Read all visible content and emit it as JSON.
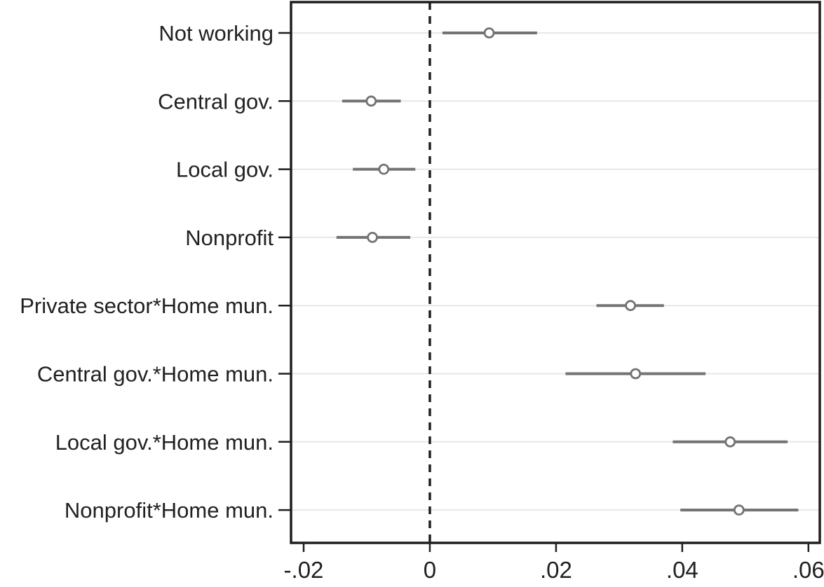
{
  "figure": {
    "background": "#ffffff"
  },
  "chart_data": {
    "type": "scatter",
    "subtype": "coefficient-plot",
    "title": "",
    "xlabel": "",
    "ylabel": "",
    "grid": "horizontal-rows",
    "legend": "none",
    "xlim": [
      -0.022,
      0.0618
    ],
    "zero_line": 0,
    "x_ticks": {
      "values": [
        -0.02,
        0,
        0.02,
        0.04,
        0.06
      ],
      "labels": [
        "-.02",
        "0",
        ".02",
        ".04",
        ".06"
      ]
    },
    "rows": [
      {
        "label": "Not working",
        "estimate": 0.0094,
        "ci_low": 0.002,
        "ci_high": 0.017
      },
      {
        "label": "Central gov.",
        "estimate": -0.0093,
        "ci_low": -0.0139,
        "ci_high": -0.0046
      },
      {
        "label": "Local gov.",
        "estimate": -0.0073,
        "ci_low": -0.0122,
        "ci_high": -0.0023
      },
      {
        "label": "Nonprofit",
        "estimate": -0.0091,
        "ci_low": -0.0148,
        "ci_high": -0.0031
      },
      {
        "label": "Private sector*Home mun.",
        "estimate": 0.0318,
        "ci_low": 0.0264,
        "ci_high": 0.0371
      },
      {
        "label": "Central gov.*Home mun.",
        "estimate": 0.0326,
        "ci_low": 0.0215,
        "ci_high": 0.0437
      },
      {
        "label": "Local gov.*Home mun.",
        "estimate": 0.0476,
        "ci_low": 0.0385,
        "ci_high": 0.0567
      },
      {
        "label": "Nonprofit*Home mun.",
        "estimate": 0.049,
        "ci_low": 0.0397,
        "ci_high": 0.0584
      }
    ],
    "colors": {
      "marker": "#737373",
      "ci_line": "#737373",
      "marker_fill": "#ffffff",
      "grid_line": "#e7e7e7",
      "frame": "#1f1f1f",
      "zero_line": "#1f1f1f",
      "text": "#212121"
    }
  }
}
